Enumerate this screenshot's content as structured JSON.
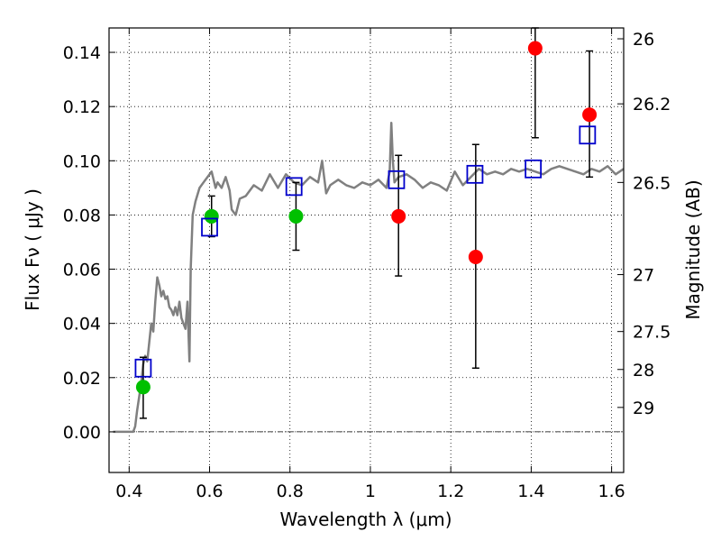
{
  "chart_data": {
    "type": "scatter",
    "xlabel": "Wavelength  λ (μm)",
    "ylabel": "Flux  Fν  ( μJy )",
    "y2label": "Magnitude (AB)",
    "xlim": [
      0.35,
      1.63
    ],
    "ylim": [
      -0.015,
      0.149
    ],
    "grid": true,
    "xticks": [
      0.4,
      0.6,
      0.8,
      1.0,
      1.2,
      1.4,
      1.6
    ],
    "xtick_labels": [
      "0.4",
      "0.6",
      "0.8",
      "1",
      "1.2",
      "1.4",
      "1.6"
    ],
    "yticks": [
      0.0,
      0.02,
      0.04,
      0.06,
      0.08,
      0.1,
      0.12,
      0.14
    ],
    "ytick_labels": [
      "0.00",
      "0.02",
      "0.04",
      "0.06",
      "0.08",
      "0.10",
      "0.12",
      "0.14"
    ],
    "right_ticks": [
      {
        "label": "26",
        "flux": 0.145
      },
      {
        "label": "26.2",
        "flux": 0.121
      },
      {
        "label": "26.5",
        "flux": 0.092
      },
      {
        "label": "27",
        "flux": 0.058
      },
      {
        "label": "27.5",
        "flux": 0.037
      },
      {
        "label": "28",
        "flux": 0.023
      },
      {
        "label": "29",
        "flux": 0.009
      }
    ],
    "model_spectrum": {
      "color": "#808080",
      "x": [
        0.36,
        0.41,
        0.415,
        0.42,
        0.43,
        0.435,
        0.44,
        0.445,
        0.45,
        0.455,
        0.46,
        0.465,
        0.47,
        0.475,
        0.48,
        0.485,
        0.49,
        0.495,
        0.5,
        0.505,
        0.51,
        0.515,
        0.52,
        0.525,
        0.53,
        0.535,
        0.54,
        0.545,
        0.55,
        0.553,
        0.558,
        0.565,
        0.575,
        0.585,
        0.595,
        0.605,
        0.61,
        0.615,
        0.62,
        0.63,
        0.64,
        0.65,
        0.655,
        0.665,
        0.675,
        0.69,
        0.71,
        0.73,
        0.75,
        0.77,
        0.79,
        0.81,
        0.83,
        0.85,
        0.87,
        0.88,
        0.89,
        0.9,
        0.92,
        0.94,
        0.96,
        0.98,
        1.0,
        1.02,
        1.04,
        1.048,
        1.052,
        1.056,
        1.06,
        1.07,
        1.09,
        1.11,
        1.13,
        1.15,
        1.17,
        1.19,
        1.21,
        1.23,
        1.25,
        1.27,
        1.29,
        1.31,
        1.33,
        1.35,
        1.37,
        1.39,
        1.41,
        1.43,
        1.45,
        1.47,
        1.49,
        1.51,
        1.53,
        1.55,
        1.57,
        1.59,
        1.61,
        1.63
      ],
      "y": [
        0.0,
        0.0,
        0.002,
        0.008,
        0.018,
        0.025,
        0.028,
        0.026,
        0.033,
        0.04,
        0.037,
        0.048,
        0.057,
        0.054,
        0.05,
        0.052,
        0.049,
        0.05,
        0.046,
        0.045,
        0.043,
        0.046,
        0.043,
        0.048,
        0.042,
        0.04,
        0.038,
        0.048,
        0.026,
        0.06,
        0.08,
        0.085,
        0.09,
        0.092,
        0.094,
        0.096,
        0.093,
        0.09,
        0.092,
        0.09,
        0.094,
        0.089,
        0.082,
        0.08,
        0.086,
        0.087,
        0.091,
        0.089,
        0.095,
        0.09,
        0.095,
        0.092,
        0.091,
        0.094,
        0.092,
        0.1,
        0.088,
        0.091,
        0.093,
        0.091,
        0.09,
        0.092,
        0.091,
        0.093,
        0.09,
        0.096,
        0.114,
        0.1,
        0.092,
        0.094,
        0.095,
        0.093,
        0.09,
        0.092,
        0.091,
        0.089,
        0.096,
        0.091,
        0.094,
        0.097,
        0.095,
        0.096,
        0.095,
        0.097,
        0.096,
        0.097,
        0.096,
        0.095,
        0.097,
        0.098,
        0.097,
        0.096,
        0.095,
        0.097,
        0.096,
        0.098,
        0.095,
        0.097
      ]
    },
    "series": [
      {
        "color": "#00c000",
        "marker": "circle",
        "points": [
          {
            "x": 0.435,
            "y": 0.0165,
            "yerr": [
              0.005,
              0.0275
            ]
          },
          {
            "x": 0.605,
            "y": 0.0795,
            "yerr": [
              0.072,
              0.087
            ]
          },
          {
            "x": 0.815,
            "y": 0.0795,
            "yerr": [
              0.067,
              0.092
            ]
          }
        ]
      },
      {
        "color": "#ff0000",
        "marker": "circle",
        "points": [
          {
            "x": 1.07,
            "y": 0.0795,
            "yerr": [
              0.0575,
              0.102
            ]
          },
          {
            "x": 1.262,
            "y": 0.0645,
            "yerr": [
              0.0235,
              0.106
            ]
          },
          {
            "x": 1.41,
            "y": 0.1415,
            "yerr": [
              0.1085,
              0.149
            ]
          },
          {
            "x": 1.545,
            "y": 0.117,
            "yerr": [
              0.094,
              0.1405
            ]
          }
        ]
      },
      {
        "color": "#0000cc",
        "marker": "open-square",
        "points": [
          {
            "x": 0.435,
            "y": 0.0235
          },
          {
            "x": 0.6,
            "y": 0.0755
          },
          {
            "x": 0.81,
            "y": 0.0905
          },
          {
            "x": 1.065,
            "y": 0.093
          },
          {
            "x": 1.26,
            "y": 0.095
          },
          {
            "x": 1.405,
            "y": 0.097
          },
          {
            "x": 1.54,
            "y": 0.1095
          }
        ]
      }
    ]
  }
}
